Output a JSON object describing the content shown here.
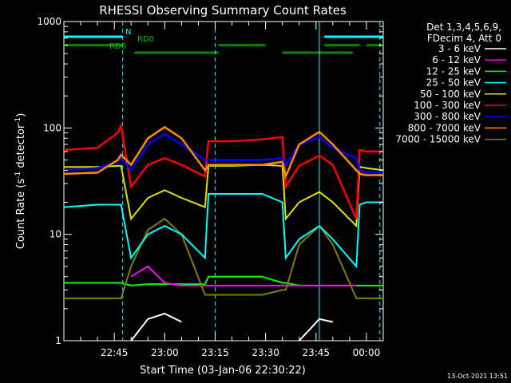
{
  "chart_data": {
    "type": "line",
    "title": "RHESSI Observing Summary Count Rates",
    "xlabel": "Start Time (03-Jan-06 22:30:22)",
    "ylabel": "Count Rate (s⁻¹ detector⁻¹)",
    "ylabel_parts": {
      "main": "Count Rate (s",
      "sup1": "-1",
      "mid": " detector",
      "sup2": "-1",
      "end": ")"
    },
    "yscale": "log",
    "ylim": [
      1,
      1000
    ],
    "xlim_min": [
      0,
      95
    ],
    "x_ticks_min": [
      15,
      30,
      45,
      60,
      75,
      90
    ],
    "x_tick_labels": [
      "22:45",
      "23:00",
      "23:15",
      "23:30",
      "23:45",
      "00:00"
    ],
    "y_ticks": [
      1,
      10,
      100,
      1000
    ],
    "y_tick_labels": [
      "1",
      "10",
      "100",
      "1000"
    ],
    "legend_placement": "right",
    "legend_header": [
      "Det 1,3,4,5,6,9,",
      "FDecim 4, Att 0"
    ],
    "series": [
      {
        "name": "3 - 6 keV",
        "color": "#ffffff"
      },
      {
        "name": "6 - 12 keV",
        "color": "#ff00ff"
      },
      {
        "name": "12 - 25 keV",
        "color": "#00ff00"
      },
      {
        "name": "25 - 50 keV",
        "color": "#00ffff"
      },
      {
        "name": "50 - 100 keV",
        "color": "#e0e000"
      },
      {
        "name": "100 - 300 keV",
        "color": "#ff0000"
      },
      {
        "name": "300 - 800 keV",
        "color": "#0000ff"
      },
      {
        "name": "800 - 7000 keV",
        "color": "#ff8c00"
      },
      {
        "name": "7000 - 15000 keV",
        "color": "#808000"
      }
    ],
    "profiles": {
      "x": [
        0,
        10,
        16,
        17,
        20,
        25,
        30,
        35,
        42,
        43,
        50,
        59,
        65,
        66,
        70,
        76,
        80,
        87,
        88,
        90,
        95
      ],
      "white": [
        null,
        null,
        null,
        null,
        1,
        1.6,
        1.8,
        1.5,
        null,
        null,
        null,
        null,
        null,
        null,
        1,
        1.6,
        1.5,
        null,
        null,
        null,
        null
      ],
      "magenta": [
        null,
        null,
        null,
        null,
        4,
        5,
        3.5,
        3.3,
        3.3,
        3.3,
        3.3,
        3.3,
        3.3,
        3.3,
        3.3,
        3.3,
        3.3,
        3.3,
        null,
        null,
        null
      ],
      "green": [
        3.5,
        3.5,
        3.5,
        3.5,
        3.3,
        3.4,
        3.4,
        3.4,
        3.4,
        4,
        4,
        4,
        3.5,
        3.5,
        3.3,
        3.3,
        3.3,
        3.3,
        3.3,
        3.3,
        3.3
      ],
      "cyan": [
        18,
        19,
        19,
        19,
        6,
        10,
        12,
        10,
        6,
        24,
        24,
        24,
        20,
        6,
        9,
        12,
        9,
        5,
        19,
        20,
        20
      ],
      "yellow": [
        43,
        43,
        44,
        44,
        14,
        22,
        26,
        22,
        18,
        44,
        44,
        45,
        44,
        14,
        20,
        25,
        20,
        12,
        43,
        42,
        40
      ],
      "red": [
        62,
        65,
        90,
        105,
        28,
        45,
        52,
        45,
        35,
        75,
        75,
        78,
        82,
        28,
        44,
        55,
        45,
        14,
        62,
        60,
        60
      ],
      "blue": [
        40,
        42,
        48,
        52,
        40,
        70,
        88,
        70,
        50,
        50,
        50,
        50,
        52,
        45,
        70,
        82,
        65,
        52,
        40,
        38,
        38
      ],
      "orange": [
        37,
        38,
        50,
        56,
        45,
        80,
        102,
        80,
        40,
        45,
        45,
        45,
        48,
        35,
        70,
        92,
        70,
        40,
        37,
        36,
        36
      ],
      "olive": [
        2.5,
        2.5,
        2.5,
        2.5,
        5,
        11,
        14,
        10,
        2.7,
        2.7,
        2.7,
        2.7,
        3,
        3,
        8,
        12,
        8,
        2.5,
        2.5,
        2.5,
        2.5
      ]
    },
    "annotations": [
      {
        "text": "N",
        "color": "#00ffff"
      },
      {
        "text": "RD0",
        "color": "#00bb00"
      },
      {
        "text": "RD6",
        "color": "#00bb00"
      }
    ],
    "vlines_min": [
      17.5,
      45,
      76,
      94
    ],
    "status_bars": {
      "cyan_top": [
        [
          0,
          17.5
        ],
        [
          77.5,
          95
        ]
      ],
      "green_top": [
        [
          0,
          17.5
        ],
        [
          46,
          60
        ],
        [
          77.5,
          88
        ],
        [
          90,
          95
        ]
      ],
      "green_low": [
        [
          21,
          46
        ],
        [
          65,
          86
        ]
      ]
    },
    "grid": false
  },
  "footer_date": "13-Oct-2021 13:51"
}
